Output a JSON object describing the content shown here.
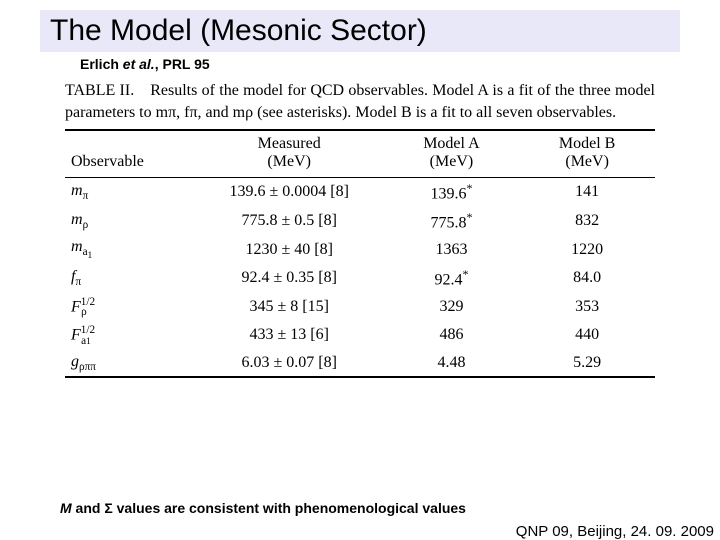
{
  "title": "The Model (Mesonic Sector)",
  "citation_prefix": "Erlich ",
  "citation_etal": "et al.",
  "citation_suffix": ", PRL 95",
  "caption": "TABLE II. Results of the model for QCD observables. Model A is a fit of the three model parameters to mπ, fπ, and mρ (see asterisks). Model B is a fit to all seven observables.",
  "headers": {
    "obs": "Observable",
    "meas_l1": "Measured",
    "meas_l2": "(MeV)",
    "a_l1": "Model A",
    "a_l2": "(MeV)",
    "b_l1": "Model B",
    "b_l2": "(MeV)"
  },
  "rows": [
    {
      "obs_html": "<span class='obs'>m</span><span class='sub'>π</span>",
      "meas": "139.6 ± 0.0004 [8]",
      "a": "139.6*",
      "b": "141"
    },
    {
      "obs_html": "<span class='obs'>m</span><span class='sub'>ρ</span>",
      "meas": "775.8 ± 0.5 [8]",
      "a": "775.8*",
      "b": "832"
    },
    {
      "obs_html": "<span class='obs'>m</span><span class='sub'>a<span class='sub' style='font-size:0.85em'>1</span></span>",
      "meas": "1230 ± 40 [8]",
      "a": "1363",
      "b": "1220"
    },
    {
      "obs_html": "<span class='obs'>f</span><span class='sub'>π</span>",
      "meas": "92.4 ± 0.35 [8]",
      "a": "92.4*",
      "b": "84.0"
    },
    {
      "obs_html": "<span class='obs'>F</span><span class='sup'>1/2</span><span class='sub' style='margin-left:-14px'>ρ</span>",
      "meas": "345 ± 8 [15]",
      "a": "329",
      "b": "353"
    },
    {
      "obs_html": "<span class='obs'>F</span><span class='sup'>1/2</span><span class='sub' style='margin-left:-14px'>a<span style='font-size:0.85em'>1</span></span>",
      "meas": "433 ± 13 [6]",
      "a": "486",
      "b": "440"
    },
    {
      "obs_html": "<span class='obs'>g</span><span class='sub'>ρππ</span>",
      "meas": "6.03 ± 0.07 [8]",
      "a": "4.48",
      "b": "5.29"
    }
  ],
  "footnote_m": "M",
  "footnote_and": " and ",
  "footnote_sigma": "Σ",
  "footnote_rest": " values are consistent with phenomenological values",
  "conference": "QNP 09, Beijing, 24. 09. 2009",
  "style": {
    "title_bg": "#e8e8f8",
    "rule_color": "#000000",
    "body_font": "Times New Roman",
    "ui_font": "Arial",
    "caption_fontsize": 16,
    "title_fontsize": 30
  }
}
